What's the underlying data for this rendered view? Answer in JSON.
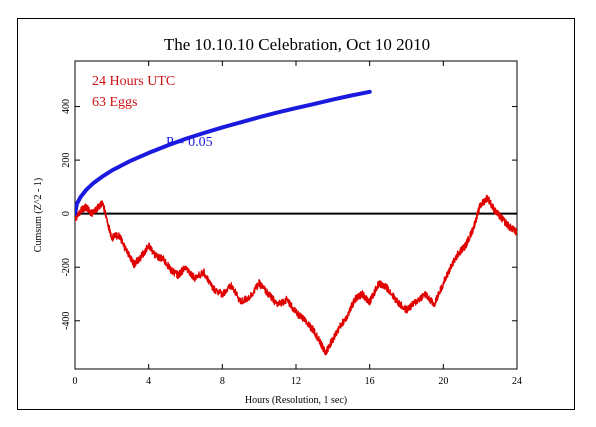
{
  "chart_data": {
    "type": "line",
    "title": "The 10.10.10 Celebration, Oct 10 2010",
    "xlabel": "Hours (Resolution, 1 sec)",
    "ylabel": "Cumsum (Z^2 - 1)",
    "xlim": [
      0,
      24
    ],
    "ylim": [
      -580,
      570
    ],
    "xticks": [
      0,
      4,
      8,
      12,
      16,
      20,
      24
    ],
    "yticks": [
      -400,
      -200,
      0,
      200,
      400
    ],
    "annotations": {
      "period": "24 Hours UTC",
      "eggs": "63 Eggs",
      "pvalue": "P = 0.05"
    },
    "colors": {
      "cumsum": "#e00000",
      "probability": "#1a1adf",
      "annotation_red": "#cc1111",
      "annotation_blue": "#1a1adf",
      "zero_line": "#000000"
    },
    "series": [
      {
        "role": "cumsum",
        "x": [
          0,
          0.3,
          0.6,
          0.9,
          1.2,
          1.5,
          1.8,
          2.0,
          2.4,
          2.8,
          3.2,
          3.6,
          4.0,
          4.4,
          4.8,
          5.2,
          5.6,
          6.0,
          6.5,
          7.0,
          7.5,
          8.0,
          8.5,
          9.0,
          9.5,
          10.0,
          10.5,
          11.0,
          11.5,
          12.0,
          12.5,
          13.0,
          13.3,
          13.6,
          14.0,
          14.4,
          14.8,
          15.2,
          15.6,
          16.0,
          16.5,
          17.0,
          17.5,
          18.0,
          18.5,
          19.0,
          19.5,
          20.0,
          20.4,
          20.8,
          21.2,
          21.6,
          22.0,
          22.4,
          22.8,
          23.2,
          23.6,
          24.0
        ],
        "y": [
          -20,
          10,
          25,
          0,
          20,
          40,
          -40,
          -90,
          -80,
          -140,
          -190,
          -160,
          -120,
          -160,
          -170,
          -210,
          -230,
          -200,
          -240,
          -220,
          -280,
          -300,
          -270,
          -330,
          -310,
          -260,
          -300,
          -340,
          -320,
          -370,
          -400,
          -440,
          -480,
          -520,
          -470,
          -420,
          -380,
          -320,
          -300,
          -330,
          -260,
          -280,
          -330,
          -360,
          -330,
          -300,
          -340,
          -260,
          -200,
          -150,
          -120,
          -60,
          30,
          60,
          10,
          -20,
          -50,
          -70
        ]
      },
      {
        "role": "probability",
        "name": "P = 0.05",
        "x": [
          0,
          0.1,
          0.3,
          0.6,
          1,
          1.5,
          2,
          3,
          4,
          5,
          6,
          7,
          8,
          9,
          10,
          11,
          12,
          13,
          14,
          15,
          15.5,
          16
        ],
        "y": [
          0,
          36,
          62,
          88,
          114,
          139,
          161,
          197,
          227,
          254,
          279,
          301,
          322,
          341,
          360,
          378,
          394,
          410,
          426,
          441,
          448,
          455
        ]
      }
    ]
  }
}
